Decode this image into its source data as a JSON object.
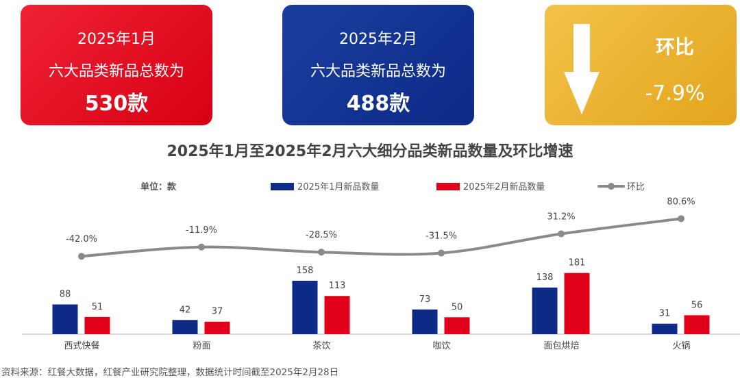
{
  "cards": {
    "jan": {
      "line1": "2025年1月",
      "line2": "六大品类新品总数为",
      "line3": "530款"
    },
    "feb": {
      "line1": "2025年2月",
      "line2": "六大品类新品总数为",
      "line3": "488款"
    },
    "mom": {
      "label": "环比",
      "value": "-7.9%",
      "icon": "down-arrow-icon"
    }
  },
  "colors": {
    "jan": "#0d2a86",
    "feb": "#e1001a",
    "mom": "#8a8a8a",
    "gold": "#e8ad2a"
  },
  "chart_data": {
    "type": "bar",
    "title": "2025年1月至2025年2月六大细分品类新品数量及环比增速",
    "unit_label": "单位：款",
    "categories": [
      "西式快餐",
      "粉面",
      "茶饮",
      "咖饮",
      "面包烘焙",
      "火锅"
    ],
    "series": [
      {
        "name": "2025年1月新品数量",
        "values": [
          88,
          42,
          158,
          73,
          138,
          31
        ]
      },
      {
        "name": "2025年2月新品数量",
        "values": [
          51,
          37,
          113,
          50,
          181,
          56
        ]
      }
    ],
    "line_series": {
      "name": "环比",
      "values": [
        -42.0,
        -11.9,
        -28.5,
        -31.5,
        31.2,
        80.6
      ],
      "labels": [
        "-42.0%",
        "-11.9%",
        "-28.5%",
        "-31.5%",
        "31.2%",
        "80.6%"
      ]
    },
    "legend_position": "top",
    "grid": false
  },
  "footer": "资料来源：红餐大数据，红餐产业研究院整理，数据统计时间截至2025年2月28日"
}
